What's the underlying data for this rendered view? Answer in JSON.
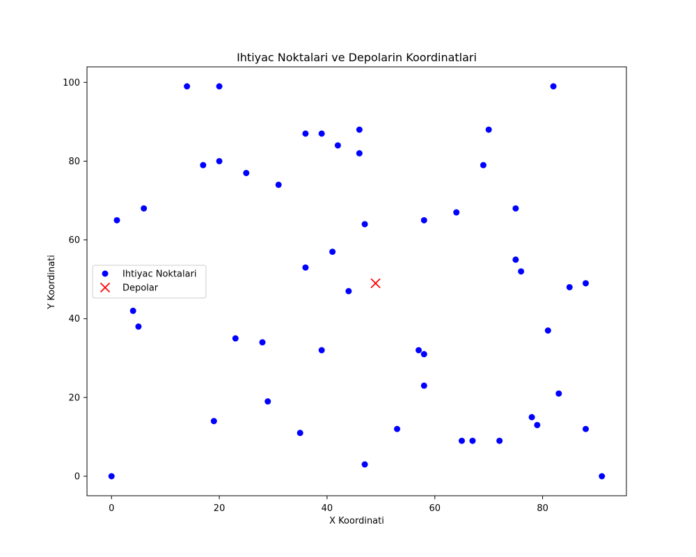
{
  "chart_data": {
    "type": "scatter",
    "title": "Ihtiyac Noktalari ve Depolarin Koordinatlari",
    "xlabel": "X Koordinati",
    "ylabel": "Y Koordinati",
    "xlim": [
      -4.55,
      95.55
    ],
    "ylim": [
      -4.95,
      103.95
    ],
    "xticks": [
      0,
      20,
      40,
      60,
      80
    ],
    "yticks": [
      0,
      20,
      40,
      60,
      80,
      100
    ],
    "grid": false,
    "legend_position": "center-left",
    "series": [
      {
        "name": "Ihtiyac Noktalari",
        "marker": "circle",
        "color": "#0000ff",
        "points": [
          [
            0,
            0
          ],
          [
            1,
            65
          ],
          [
            4,
            42
          ],
          [
            5,
            38
          ],
          [
            6,
            68
          ],
          [
            14,
            99
          ],
          [
            17,
            79
          ],
          [
            19,
            14
          ],
          [
            20,
            99
          ],
          [
            20,
            80
          ],
          [
            23,
            35
          ],
          [
            25,
            77
          ],
          [
            28,
            34
          ],
          [
            29,
            19
          ],
          [
            31,
            74
          ],
          [
            35,
            11
          ],
          [
            36,
            87
          ],
          [
            36,
            53
          ],
          [
            39,
            87
          ],
          [
            39,
            32
          ],
          [
            41,
            57
          ],
          [
            42,
            84
          ],
          [
            44,
            47
          ],
          [
            46,
            88
          ],
          [
            46,
            82
          ],
          [
            47,
            64
          ],
          [
            47,
            3
          ],
          [
            53,
            12
          ],
          [
            57,
            32
          ],
          [
            58,
            65
          ],
          [
            58,
            31
          ],
          [
            58,
            23
          ],
          [
            64,
            67
          ],
          [
            65,
            9
          ],
          [
            67,
            9
          ],
          [
            69,
            79
          ],
          [
            70,
            88
          ],
          [
            72,
            9
          ],
          [
            75,
            68
          ],
          [
            75,
            55
          ],
          [
            76,
            52
          ],
          [
            78,
            15
          ],
          [
            79,
            13
          ],
          [
            81,
            37
          ],
          [
            82,
            99
          ],
          [
            83,
            21
          ],
          [
            85,
            48
          ],
          [
            88,
            49
          ],
          [
            88,
            12
          ],
          [
            91,
            0
          ]
        ]
      },
      {
        "name": "Depolar",
        "marker": "x",
        "color": "#ff0000",
        "points": [
          [
            49,
            49
          ]
        ]
      }
    ]
  }
}
